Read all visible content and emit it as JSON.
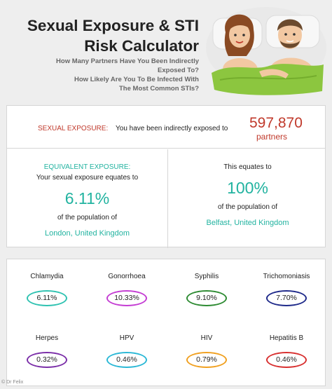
{
  "header": {
    "title_line1": "Sexual Exposure & STI",
    "title_line2": "Risk Calculator",
    "subtitle_line1": "How Many Partners Have You Been Indirectly",
    "subtitle_line2": "Exposed To?",
    "subtitle_line3": "How Likely Are You To Be Infected With",
    "subtitle_line4": "The Most Common STIs?"
  },
  "exposure": {
    "label": "SEXUAL EXPOSURE:",
    "text": "You have been indirectly exposed to",
    "number": "597,870",
    "unit": "partners",
    "color": "#c0392b"
  },
  "equivalent": {
    "label": "EQUIVALENT EXPOSURE:",
    "line1": "Your sexual exposure equates to",
    "percent": "6.11%",
    "line2": "of the population of",
    "place": "London, United Kingdom",
    "accent": "#22b3a0"
  },
  "equates": {
    "line1": "This equates to",
    "percent": "100%",
    "line2": "of the population of",
    "place": "Belfast, United Kingdom"
  },
  "stis": [
    {
      "name": "Chlamydia",
      "value": "6.11%",
      "color": "#2fc2b1"
    },
    {
      "name": "Gonorrhoea",
      "value": "10.33%",
      "color": "#c43dd3"
    },
    {
      "name": "Syphilis",
      "value": "9.10%",
      "color": "#2e8b33"
    },
    {
      "name": "Trichomoniasis",
      "value": "7.70%",
      "color": "#1f2a8a"
    },
    {
      "name": "Herpes",
      "value": "0.32%",
      "color": "#7b2fa8"
    },
    {
      "name": "HPV",
      "value": "0.46%",
      "color": "#2bb8d6"
    },
    {
      "name": "HIV",
      "value": "0.79%",
      "color": "#f0a020"
    },
    {
      "name": "Hepatitis B",
      "value": "0.46%",
      "color": "#d83030"
    }
  ],
  "credit": "© Dr Felix"
}
